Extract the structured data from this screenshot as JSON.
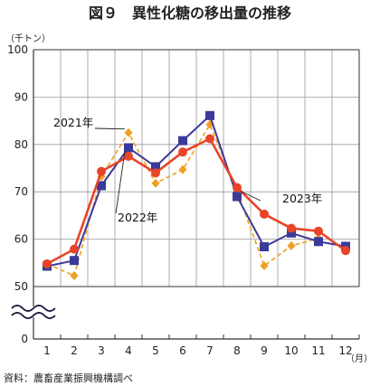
{
  "chart_data": {
    "type": "line",
    "title": "図９　異性化糖の移出量の推移",
    "ylabel": "（千トン）",
    "xunit": "（月）",
    "source": "資料：農畜産業振興機構調べ",
    "categories": [
      "1",
      "2",
      "3",
      "4",
      "5",
      "6",
      "7",
      "8",
      "9",
      "10",
      "11",
      "12"
    ],
    "yticks": [
      0,
      50,
      60,
      70,
      80,
      90,
      100
    ],
    "ylim": [
      50,
      100
    ],
    "axis_break": true,
    "grid": true,
    "series": [
      {
        "name": "2021年",
        "color": "#f0a020",
        "style": "dashed",
        "marker": "diamond",
        "values": [
          54.8,
          52.3,
          73.2,
          82.5,
          71.8,
          74.7,
          84.2,
          70.2,
          54.4,
          58.6,
          60.2,
          null
        ]
      },
      {
        "name": "2022年",
        "color": "#3a3a9a",
        "style": "solid",
        "marker": "square",
        "values": [
          54.3,
          55.5,
          71.3,
          79.3,
          75.3,
          80.8,
          86.1,
          69.0,
          58.4,
          61.3,
          59.5,
          58.5
        ]
      },
      {
        "name": "2023年",
        "color": "#e8442a",
        "style": "solid",
        "marker": "circle",
        "values": [
          54.8,
          57.9,
          74.3,
          77.5,
          74.0,
          78.4,
          81.2,
          70.9,
          65.3,
          62.3,
          61.7,
          57.6
        ]
      }
    ],
    "annotations": [
      {
        "text": "2021年",
        "series": 0,
        "point": 3
      },
      {
        "text": "2022年",
        "series": 1,
        "point": 3
      },
      {
        "text": "2023年",
        "series": 2,
        "point": 7
      }
    ]
  }
}
